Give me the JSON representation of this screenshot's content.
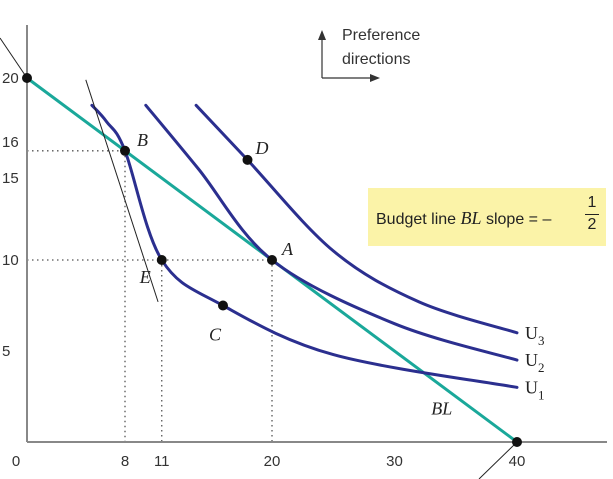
{
  "chart_data": {
    "type": "line",
    "title": "",
    "xlabel": "",
    "ylabel": "",
    "xlim": [
      0,
      45
    ],
    "ylim": [
      0,
      23
    ],
    "x_ticks": [
      "0",
      "8",
      "11",
      "20",
      "30",
      "40"
    ],
    "x_tick_values": [
      0,
      8,
      11,
      20,
      30,
      40
    ],
    "y_ticks": [
      "20",
      "16",
      "15",
      "10",
      "5"
    ],
    "y_tick_values": [
      20,
      16,
      15,
      10,
      5
    ],
    "grid": false,
    "budget_line": {
      "name": "BL",
      "points": [
        [
          0,
          20
        ],
        [
          40,
          0
        ]
      ],
      "color": "#1aa89a"
    },
    "series": [
      {
        "name": "U1",
        "label_main": "U",
        "label_sub": "1",
        "color": "#2b2f8f",
        "points": [
          [
            5.3,
            18.5
          ],
          [
            6.5,
            17.6
          ],
          [
            8,
            16
          ],
          [
            11,
            10
          ],
          [
            16,
            7.5
          ],
          [
            25,
            4.8
          ],
          [
            40,
            3
          ]
        ]
      },
      {
        "name": "U2",
        "label_main": "U",
        "label_sub": "2",
        "color": "#2b2f8f",
        "points": [
          [
            9.7,
            18.5
          ],
          [
            14,
            15
          ],
          [
            20,
            10
          ],
          [
            30,
            6.5
          ],
          [
            40,
            4.5
          ]
        ]
      },
      {
        "name": "U3",
        "label_main": "U",
        "label_sub": "3",
        "color": "#2b2f8f",
        "points": [
          [
            13.8,
            18.5
          ],
          [
            18,
            15.5
          ],
          [
            25,
            10.5
          ],
          [
            32,
            7.7
          ],
          [
            40,
            6
          ]
        ]
      }
    ],
    "tangent_line": {
      "points": [
        [
          4.8,
          19.9
        ],
        [
          10.7,
          7.7
        ]
      ]
    },
    "points": [
      {
        "name": "B",
        "x": 8,
        "y": 16
      },
      {
        "name": "A",
        "x": 20,
        "y": 10
      },
      {
        "name": "E",
        "x": 11,
        "y": 10
      },
      {
        "name": "C",
        "x": 16,
        "y": 7.5
      },
      {
        "name": "D",
        "x": 18,
        "y": 15.5
      },
      {
        "name": "origin-y",
        "x": 0,
        "y": 20
      },
      {
        "name": "origin-x",
        "x": 40,
        "y": 0
      }
    ],
    "budget_label": {
      "prefix": "Budget line ",
      "name": "BL",
      "suffix": " slope = –",
      "numerator": "1",
      "denominator": "2"
    },
    "preference": {
      "line1": "Preference",
      "line2": "directions"
    }
  }
}
